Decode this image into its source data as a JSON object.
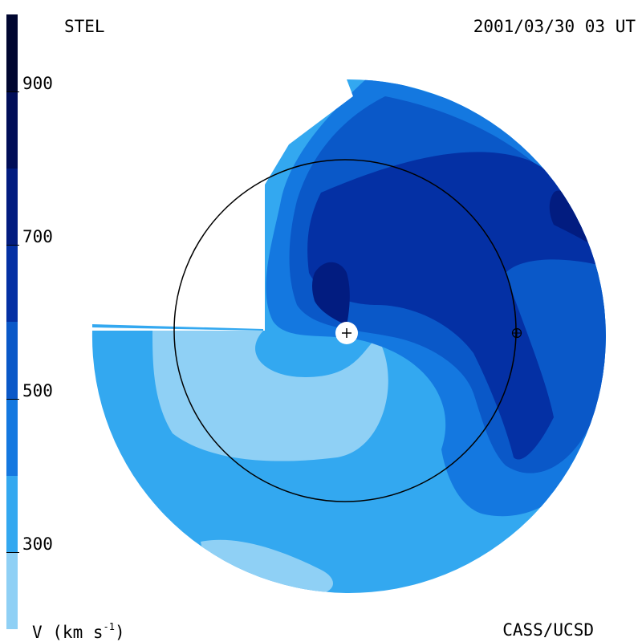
{
  "header": {
    "source": "STEL",
    "timestamp": "2001/03/30 03 UT"
  },
  "footer": {
    "unit_main": "V (km s",
    "unit_exp": "-1",
    "unit_close": ")",
    "credit": "CASS/UCSD"
  },
  "colorbar": {
    "min": 200,
    "max": 1000,
    "levels": [
      {
        "from": 200,
        "to": 300,
        "color": "#8fd0f5"
      },
      {
        "from": 300,
        "to": 400,
        "color": "#33a8f0"
      },
      {
        "from": 400,
        "to": 500,
        "color": "#1478e0"
      },
      {
        "from": 500,
        "to": 600,
        "color": "#0a58c8"
      },
      {
        "from": 600,
        "to": 700,
        "color": "#0430a4"
      },
      {
        "from": 700,
        "to": 800,
        "color": "#021c80"
      },
      {
        "from": 800,
        "to": 900,
        "color": "#010e58"
      },
      {
        "from": 900,
        "to": 1000,
        "color": "#000630"
      }
    ],
    "ticks": [
      {
        "value": 300,
        "label": "300"
      },
      {
        "value": 500,
        "label": "500"
      },
      {
        "value": 700,
        "label": "700"
      },
      {
        "value": 900,
        "label": "900"
      }
    ]
  },
  "map": {
    "sun_marker": "sun-icon",
    "earth_marker": "earth-icon"
  }
}
